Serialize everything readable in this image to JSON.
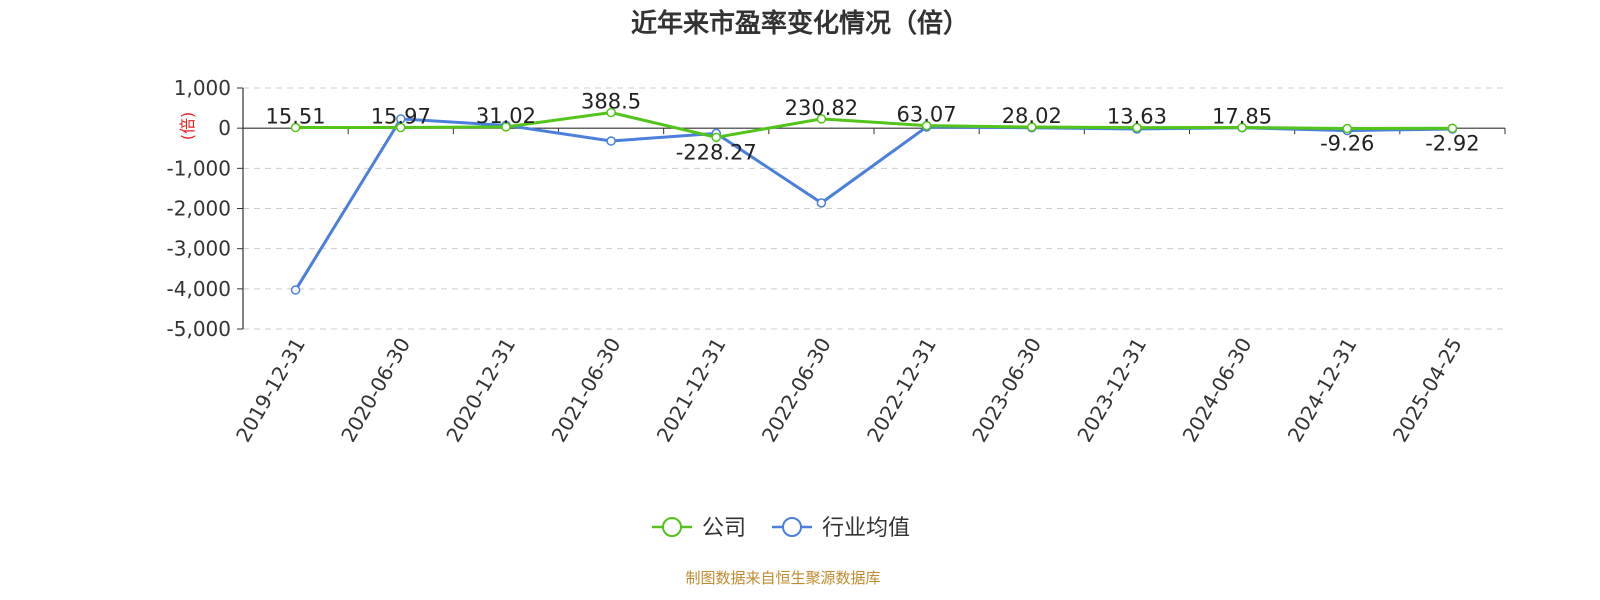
{
  "chart_data": {
    "type": "line",
    "title": "近年来市盈率变化情况（倍）",
    "ylabel": "(倍)",
    "categories": [
      "2019-12-31",
      "2020-06-30",
      "2020-12-31",
      "2021-06-30",
      "2021-12-31",
      "2022-06-30",
      "2022-12-31",
      "2023-06-30",
      "2023-12-31",
      "2024-06-30",
      "2024-12-31",
      "2025-04-25"
    ],
    "series": [
      {
        "name": "公司",
        "color": "#52c41a",
        "values": [
          15.51,
          15.97,
          31.02,
          388.5,
          -228.27,
          230.82,
          63.07,
          28.02,
          13.63,
          17.85,
          -9.26,
          -2.92
        ],
        "labels": [
          "15.51",
          "15.97",
          "31.02",
          "388.5",
          "-228.27",
          "230.82",
          "63.07",
          "28.02",
          "13.63",
          "17.85",
          "-9.26",
          "-2.92"
        ]
      },
      {
        "name": "行业均值",
        "color": "#4a7fdc",
        "values": [
          -4030,
          230,
          70,
          -320,
          -130,
          -1860,
          30,
          10,
          -20,
          10,
          -60,
          -20
        ]
      }
    ],
    "ylim": [
      -5000,
      1000
    ],
    "yticks": [
      1000,
      0,
      -1000,
      -2000,
      -3000,
      -4000,
      -5000
    ],
    "ytick_labels": [
      "1,000",
      "0",
      "-1,000",
      "-2,000",
      "-3,000",
      "-4,000",
      "-5,000"
    ],
    "grid": true,
    "legend_position": "bottom-center"
  },
  "source_text": "制图数据来自恒生聚源数据库"
}
